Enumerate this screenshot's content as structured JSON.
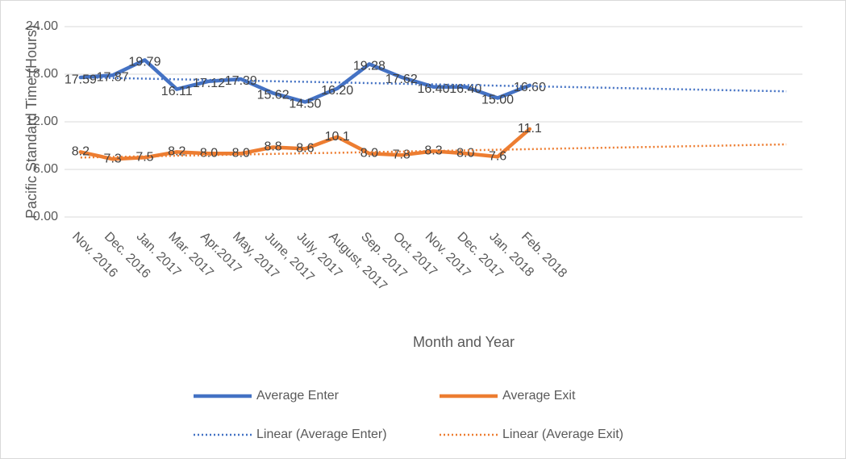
{
  "chart_data": {
    "type": "line",
    "y_label": "Pacific Standard Time (Hours)",
    "x_label": "Month and Year",
    "categories": [
      "Nov. 2016",
      "Dec. 2016",
      "Jan. 2017",
      "Mar. 2017",
      "Apr.2017",
      "May, 2017",
      "June, 2017",
      "July, 2017",
      "August, 2017",
      "Sep. 2017",
      "Oct. 2017",
      "Nov. 2017",
      "Dec. 2017",
      "Jan. 2018",
      "Feb. 2018",
      null,
      null,
      null,
      null,
      null,
      null,
      null,
      null
    ],
    "series": [
      {
        "name": "Average Enter",
        "color": "#4472c4",
        "dash": "solid",
        "values": [
          17.59,
          17.87,
          19.79,
          16.11,
          17.12,
          17.39,
          15.62,
          14.5,
          16.2,
          19.28,
          17.62,
          16.4,
          16.4,
          15.0,
          16.6,
          null,
          null,
          null,
          null,
          null,
          null,
          null,
          null
        ],
        "value_labels": [
          "17.59",
          "17.87",
          "19.79",
          "16.11",
          "17.12",
          "17.39",
          "15.62",
          "14.50",
          "16.20",
          "19.28",
          "17.62",
          "16.40",
          "16.40",
          "15.00",
          "16.60",
          null,
          null,
          null,
          null,
          null,
          null,
          null,
          null
        ]
      },
      {
        "name": "Average Exit",
        "color": "#ed7d31",
        "dash": "solid",
        "values": [
          8.2,
          7.3,
          7.5,
          8.2,
          8.0,
          8.0,
          8.8,
          8.6,
          10.1,
          8.0,
          7.8,
          8.3,
          8.0,
          7.6,
          11.1,
          null,
          null,
          null,
          null,
          null,
          null,
          null,
          null
        ],
        "value_labels": [
          "8.2",
          "7.3",
          "7.5",
          "8.2",
          "8.0",
          "8.0",
          "8.8",
          "8.6",
          "10.1",
          "8.0",
          "7.8",
          "8.3",
          "8.0",
          "7.6",
          "11.1",
          null,
          null,
          null,
          null,
          null,
          null,
          null,
          null
        ]
      },
      {
        "name": "Linear (Average Enter)",
        "color": "#4472c4",
        "dash": "dotted",
        "values": [
          17.6,
          17.52,
          17.44,
          17.36,
          17.28,
          17.2,
          17.12,
          17.04,
          16.96,
          16.88,
          16.8,
          16.72,
          16.64,
          16.56,
          16.48,
          16.4,
          16.32,
          16.24,
          16.16,
          16.08,
          16.0,
          15.92,
          15.84
        ]
      },
      {
        "name": "Linear (Average Exit)",
        "color": "#ed7d31",
        "dash": "dotted",
        "values": [
          7.5,
          7.58,
          7.65,
          7.73,
          7.8,
          7.88,
          7.95,
          8.03,
          8.1,
          8.18,
          8.25,
          8.33,
          8.4,
          8.48,
          8.55,
          8.63,
          8.7,
          8.78,
          8.85,
          8.93,
          9.0,
          9.08,
          9.15
        ]
      }
    ],
    "ylim": [
      0,
      24
    ],
    "yticks": [
      {
        "value": 0,
        "label": "0.00"
      },
      {
        "value": 6,
        "label": "6.00"
      },
      {
        "value": 12,
        "label": "12.00"
      },
      {
        "value": 18,
        "label": "18.00"
      },
      {
        "value": 24,
        "label": "24.00"
      }
    ],
    "grid": true
  }
}
